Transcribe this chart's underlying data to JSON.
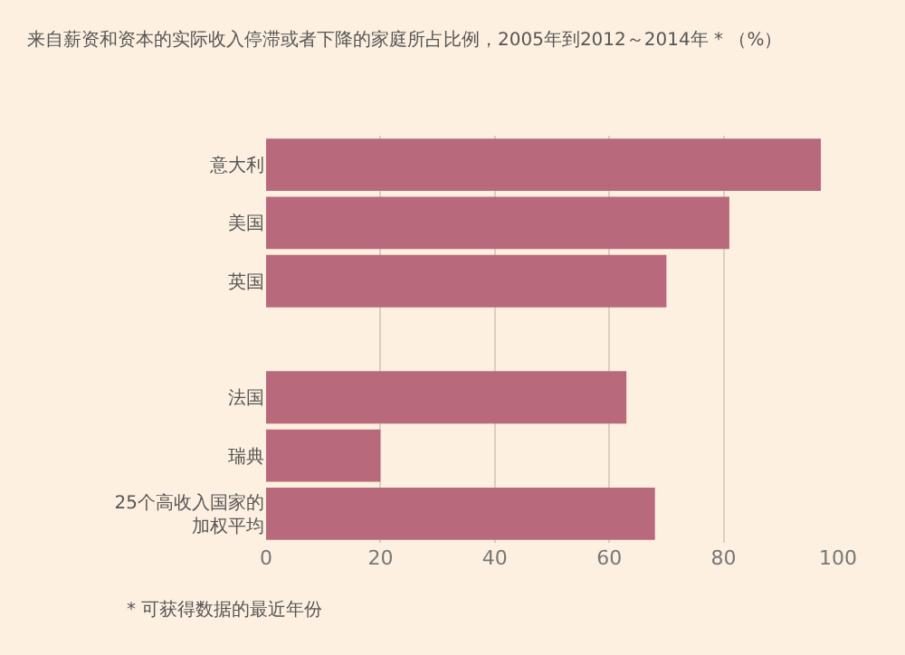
{
  "chart_data": {
    "type": "bar",
    "orientation": "horizontal",
    "title": "来自薪资和资本的实际收入停滞或者下降的家庭所占比例，2005年到2012～2014年 * （%）",
    "categories": [
      "意大利",
      "美国",
      "英国",
      null,
      "法国",
      "瑞典",
      "25个高收入国家的加权平均"
    ],
    "values": [
      97,
      81,
      70,
      null,
      63,
      20,
      68
    ],
    "color": "#b9697c",
    "xlim": [
      0,
      100
    ],
    "xticks": [
      0,
      20,
      40,
      60,
      80,
      100
    ],
    "grid": "x",
    "annotations": [
      "* 可获得数据的最近年份"
    ]
  }
}
